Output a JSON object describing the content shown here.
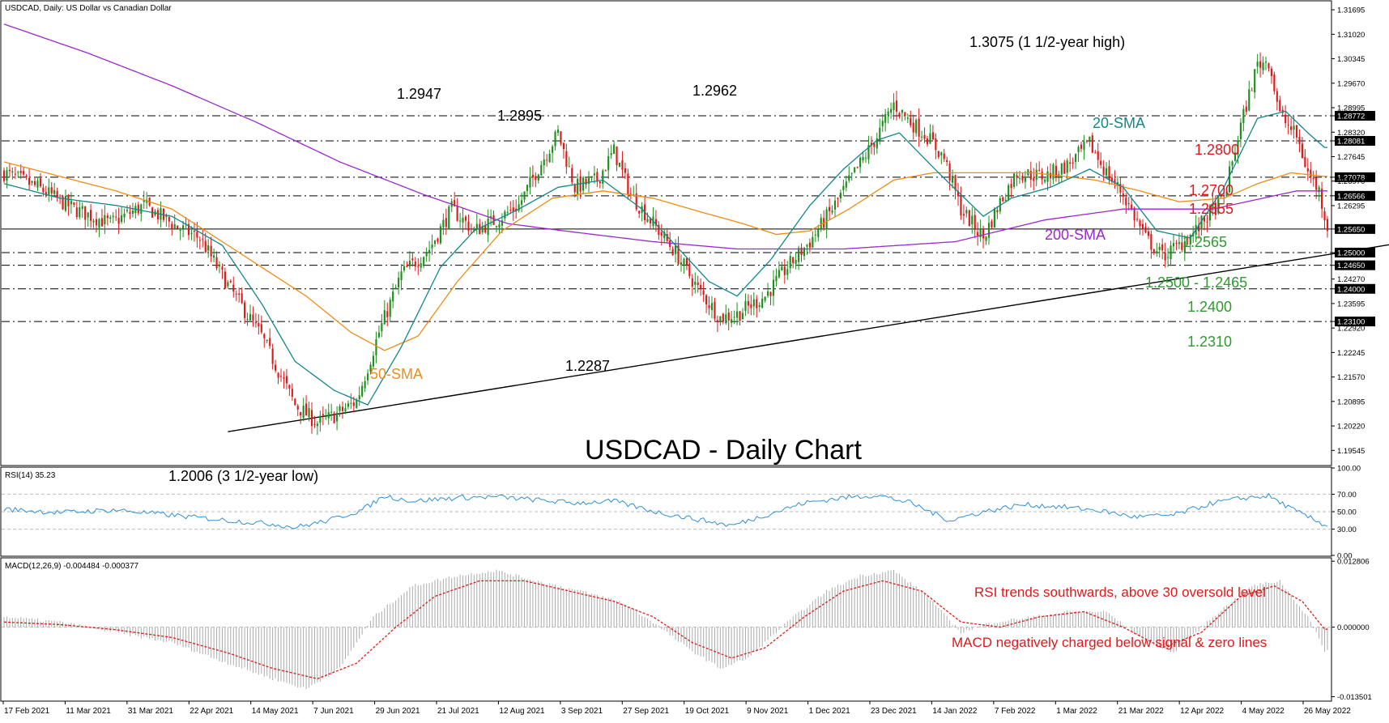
{
  "header": {
    "title": "USDCAD, Daily:  US Dollar vs Canadian Dollar"
  },
  "colors": {
    "up": "#1c8f1c",
    "down": "#e01818",
    "sma20": "#13878a",
    "sma50": "#f08c14",
    "sma200": "#9b28cf",
    "rsi": "#2f8fd6",
    "macd_signal": "#e01818",
    "macd_hist": "#aaaaaa",
    "red_label": "#e01818",
    "green_label": "#2f9a2f"
  },
  "chart_data": [
    {
      "type": "candlestick",
      "title": "USDCAD - Daily Chart",
      "ylim": [
        1.1915,
        1.3192
      ],
      "y_ticks": [
        "1.31695",
        "1.31020",
        "1.30345",
        "1.29670",
        "1.28995",
        "1.28772",
        "1.28320",
        "1.28081",
        "1.27645",
        "1.27078",
        "1.26970",
        "1.26566",
        "1.26295",
        "1.25650",
        "1.25000",
        "1.24650",
        "1.24270",
        "1.24000",
        "1.23595",
        "1.23100",
        "1.22920",
        "1.22245",
        "1.21570",
        "1.20895",
        "1.20220",
        "1.19545"
      ],
      "highlight_ticks": [
        "1.28772",
        "1.28081",
        "1.27078",
        "1.26566",
        "1.25650",
        "1.25000",
        "1.24650",
        "1.24000",
        "1.23100"
      ],
      "x_ticks": [
        "17 Feb 2021",
        "11 Mar 2021",
        "31 Mar 2021",
        "22 Apr 2021",
        "14 May 2021",
        "7 Jun 2021",
        "29 Jun 2021",
        "21 Jul 2021",
        "12 Aug 2021",
        "3 Sep 2021",
        "27 Sep 2021",
        "19 Oct 2021",
        "9 Nov 2021",
        "1 Dec 2021",
        "23 Dec 2021",
        "14 Jan 2022",
        "7 Feb 2022",
        "1 Mar 2022",
        "21 Mar 2022",
        "12 Apr 2022",
        "4 May 2022",
        "26 May 2022"
      ],
      "price_path": [
        [
          0,
          1.272
        ],
        [
          12,
          1.268
        ],
        [
          25,
          1.262
        ],
        [
          38,
          1.258
        ],
        [
          50,
          1.263
        ],
        [
          62,
          1.257
        ],
        [
          70,
          1.254
        ],
        [
          80,
          1.241
        ],
        [
          92,
          1.227
        ],
        [
          104,
          1.208
        ],
        [
          112,
          1.203
        ],
        [
          118,
          1.205
        ],
        [
          126,
          1.209
        ],
        [
          134,
          1.228
        ],
        [
          142,
          1.244
        ],
        [
          152,
          1.251
        ],
        [
          160,
          1.262
        ],
        [
          168,
          1.256
        ],
        [
          176,
          1.259
        ],
        [
          184,
          1.263
        ],
        [
          190,
          1.272
        ],
        [
          198,
          1.283
        ],
        [
          204,
          1.268
        ],
        [
          212,
          1.27
        ],
        [
          218,
          1.278
        ],
        [
          224,
          1.266
        ],
        [
          232,
          1.258
        ],
        [
          240,
          1.25
        ],
        [
          248,
          1.24
        ],
        [
          256,
          1.232
        ],
        [
          262,
          1.233
        ],
        [
          272,
          1.238
        ],
        [
          280,
          1.246
        ],
        [
          288,
          1.253
        ],
        [
          296,
          1.262
        ],
        [
          304,
          1.272
        ],
        [
          312,
          1.282
        ],
        [
          318,
          1.291
        ],
        [
          324,
          1.286
        ],
        [
          330,
          1.282
        ],
        [
          336,
          1.276
        ],
        [
          342,
          1.262
        ],
        [
          350,
          1.254
        ],
        [
          356,
          1.264
        ],
        [
          362,
          1.272
        ],
        [
          372,
          1.271
        ],
        [
          380,
          1.274
        ],
        [
          388,
          1.28
        ],
        [
          394,
          1.272
        ],
        [
          400,
          1.266
        ],
        [
          408,
          1.254
        ],
        [
          414,
          1.249
        ],
        [
          420,
          1.252
        ],
        [
          426,
          1.256
        ],
        [
          430,
          1.26
        ],
        [
          436,
          1.265
        ],
        [
          442,
          1.285
        ],
        [
          448,
          1.302
        ],
        [
          452,
          1.303
        ],
        [
          456,
          1.288
        ],
        [
          462,
          1.282
        ],
        [
          466,
          1.272
        ],
        [
          470,
          1.267
        ],
        [
          473,
          1.257
        ]
      ],
      "sma20_path": [
        [
          0,
          1.269
        ],
        [
          20,
          1.265
        ],
        [
          40,
          1.263
        ],
        [
          60,
          1.26
        ],
        [
          78,
          1.252
        ],
        [
          92,
          1.236
        ],
        [
          104,
          1.22
        ],
        [
          118,
          1.212
        ],
        [
          130,
          1.208
        ],
        [
          142,
          1.224
        ],
        [
          156,
          1.246
        ],
        [
          168,
          1.256
        ],
        [
          184,
          1.262
        ],
        [
          198,
          1.268
        ],
        [
          214,
          1.27
        ],
        [
          228,
          1.262
        ],
        [
          240,
          1.252
        ],
        [
          252,
          1.242
        ],
        [
          262,
          1.238
        ],
        [
          274,
          1.248
        ],
        [
          288,
          1.263
        ],
        [
          300,
          1.273
        ],
        [
          312,
          1.281
        ],
        [
          320,
          1.283
        ],
        [
          334,
          1.272
        ],
        [
          350,
          1.26
        ],
        [
          360,
          1.265
        ],
        [
          374,
          1.268
        ],
        [
          388,
          1.273
        ],
        [
          400,
          1.268
        ],
        [
          412,
          1.256
        ],
        [
          424,
          1.254
        ],
        [
          436,
          1.268
        ],
        [
          448,
          1.287
        ],
        [
          458,
          1.289
        ],
        [
          466,
          1.283
        ],
        [
          472,
          1.279
        ]
      ],
      "sma50_path": [
        [
          0,
          1.275
        ],
        [
          20,
          1.271
        ],
        [
          40,
          1.267
        ],
        [
          60,
          1.262
        ],
        [
          76,
          1.254
        ],
        [
          92,
          1.246
        ],
        [
          108,
          1.238
        ],
        [
          124,
          1.228
        ],
        [
          136,
          1.223
        ],
        [
          148,
          1.227
        ],
        [
          162,
          1.242
        ],
        [
          178,
          1.256
        ],
        [
          196,
          1.265
        ],
        [
          214,
          1.267
        ],
        [
          232,
          1.265
        ],
        [
          250,
          1.261
        ],
        [
          264,
          1.258
        ],
        [
          276,
          1.255
        ],
        [
          288,
          1.256
        ],
        [
          302,
          1.262
        ],
        [
          318,
          1.27
        ],
        [
          332,
          1.272
        ],
        [
          350,
          1.272
        ],
        [
          368,
          1.272
        ],
        [
          390,
          1.27
        ],
        [
          406,
          1.267
        ],
        [
          420,
          1.264
        ],
        [
          436,
          1.265
        ],
        [
          448,
          1.269
        ],
        [
          460,
          1.272
        ],
        [
          472,
          1.271
        ]
      ],
      "sma200_path": [
        [
          0,
          1.313
        ],
        [
          30,
          1.305
        ],
        [
          60,
          1.296
        ],
        [
          90,
          1.286
        ],
        [
          120,
          1.275
        ],
        [
          150,
          1.266
        ],
        [
          180,
          1.258
        ],
        [
          200,
          1.256
        ],
        [
          232,
          1.253
        ],
        [
          262,
          1.251
        ],
        [
          300,
          1.251
        ],
        [
          340,
          1.253
        ],
        [
          372,
          1.259
        ],
        [
          400,
          1.262
        ],
        [
          432,
          1.262
        ],
        [
          462,
          1.267
        ],
        [
          472,
          1.267
        ]
      ],
      "hlines": [
        {
          "value": 1.28772,
          "style": "dash-dot"
        },
        {
          "value": 1.28081,
          "style": "dash-dot"
        },
        {
          "value": 1.27078,
          "style": "dash-dot"
        },
        {
          "value": 1.26566,
          "style": "dash-dot"
        },
        {
          "value": 1.2565,
          "style": "solid"
        },
        {
          "value": 1.25,
          "style": "dash-dot"
        },
        {
          "value": 1.2465,
          "style": "dash-dot"
        },
        {
          "value": 1.24,
          "style": "dash-dot"
        },
        {
          "value": 1.231,
          "style": "dash-dot"
        }
      ],
      "trendline": [
        [
          80,
          1.2006
        ],
        [
          534,
          1.257
        ]
      ],
      "annotations": {
        "high_1": "1.2947",
        "high_2": "1.2895",
        "high_3": "1.2962",
        "high_4": "1.3075 (1 1/2-year high)",
        "low_1": "1.2006 (3 1/2-year low)",
        "low_2": "1.2287",
        "sma20_label": "20-SMA",
        "sma50_label": "50-SMA",
        "sma200_label": "200-SMA",
        "lvl_1": "1.2800",
        "lvl_2": "1.2700",
        "lvl_3": "1.2655",
        "lvl_4": "1.2565",
        "lvl_5": "1.2500 - 1.2465",
        "lvl_6": "1.2400",
        "lvl_7": "1.2310"
      }
    },
    {
      "type": "line",
      "title": "RSI(14) 35.23",
      "ylim": [
        0,
        100
      ],
      "y_ticks": [
        "100.00",
        "70.00",
        "50.00",
        "30.00",
        "0.00"
      ],
      "hlines": [
        70,
        50,
        30
      ],
      "rsi_path": [
        [
          0,
          53
        ],
        [
          20,
          49
        ],
        [
          40,
          52
        ],
        [
          60,
          46
        ],
        [
          80,
          40
        ],
        [
          96,
          36
        ],
        [
          104,
          32
        ],
        [
          116,
          40
        ],
        [
          128,
          52
        ],
        [
          136,
          68
        ],
        [
          146,
          62
        ],
        [
          162,
          66
        ],
        [
          176,
          67
        ],
        [
          188,
          64
        ],
        [
          204,
          60
        ],
        [
          218,
          62
        ],
        [
          234,
          49
        ],
        [
          250,
          40
        ],
        [
          260,
          34
        ],
        [
          272,
          46
        ],
        [
          286,
          60
        ],
        [
          300,
          66
        ],
        [
          312,
          69
        ],
        [
          324,
          60
        ],
        [
          338,
          40
        ],
        [
          350,
          50
        ],
        [
          364,
          58
        ],
        [
          376,
          56
        ],
        [
          390,
          52
        ],
        [
          404,
          44
        ],
        [
          418,
          46
        ],
        [
          432,
          60
        ],
        [
          444,
          66
        ],
        [
          452,
          68
        ],
        [
          462,
          50
        ],
        [
          472,
          35
        ]
      ],
      "annotation": "RSI trends southwards, above 30 oversold level"
    },
    {
      "type": "bar",
      "title": "MACD(12,26,9) -0.004484 -0.000377",
      "ylim": [
        -0.0142,
        0.0133
      ],
      "y_ticks": [
        "0.012806",
        "0.000000",
        "-0.013501"
      ],
      "macd_path": [
        [
          0,
          0.002
        ],
        [
          20,
          0.001
        ],
        [
          40,
          -0.001
        ],
        [
          60,
          -0.003
        ],
        [
          80,
          -0.007
        ],
        [
          96,
          -0.01
        ],
        [
          108,
          -0.012
        ],
        [
          120,
          -0.008
        ],
        [
          132,
          0.002
        ],
        [
          146,
          0.008
        ],
        [
          162,
          0.01
        ],
        [
          176,
          0.011
        ],
        [
          190,
          0.009
        ],
        [
          206,
          0.007
        ],
        [
          220,
          0.005
        ],
        [
          232,
          0.001
        ],
        [
          244,
          -0.004
        ],
        [
          256,
          -0.008
        ],
        [
          266,
          -0.006
        ],
        [
          280,
          0.001
        ],
        [
          294,
          0.007
        ],
        [
          306,
          0.01
        ],
        [
          318,
          0.011
        ],
        [
          330,
          0.006
        ],
        [
          342,
          -0.001
        ],
        [
          354,
          0.001
        ],
        [
          368,
          0.002
        ],
        [
          380,
          0.003
        ],
        [
          394,
          0.003
        ],
        [
          406,
          -0.002
        ],
        [
          418,
          -0.005
        ],
        [
          432,
          0.002
        ],
        [
          446,
          0.008
        ],
        [
          456,
          0.009
        ],
        [
          466,
          0.002
        ],
        [
          472,
          -0.0045
        ]
      ],
      "signal_path": [
        [
          0,
          0.001
        ],
        [
          20,
          0.0005
        ],
        [
          40,
          -0.0005
        ],
        [
          60,
          -0.002
        ],
        [
          80,
          -0.005
        ],
        [
          96,
          -0.008
        ],
        [
          112,
          -0.01
        ],
        [
          126,
          -0.007
        ],
        [
          140,
          0.0
        ],
        [
          154,
          0.006
        ],
        [
          170,
          0.009
        ],
        [
          186,
          0.009
        ],
        [
          202,
          0.007
        ],
        [
          218,
          0.005
        ],
        [
          232,
          0.002
        ],
        [
          246,
          -0.003
        ],
        [
          260,
          -0.006
        ],
        [
          272,
          -0.004
        ],
        [
          286,
          0.002
        ],
        [
          300,
          0.007
        ],
        [
          314,
          0.009
        ],
        [
          328,
          0.007
        ],
        [
          342,
          0.001
        ],
        [
          356,
          0.0
        ],
        [
          370,
          0.002
        ],
        [
          386,
          0.003
        ],
        [
          400,
          0.0
        ],
        [
          414,
          -0.004
        ],
        [
          428,
          -0.001
        ],
        [
          442,
          0.006
        ],
        [
          454,
          0.008
        ],
        [
          464,
          0.005
        ],
        [
          472,
          -0.0004
        ]
      ],
      "annotation": "MACD negatively charged below signal & zero lines"
    }
  ]
}
